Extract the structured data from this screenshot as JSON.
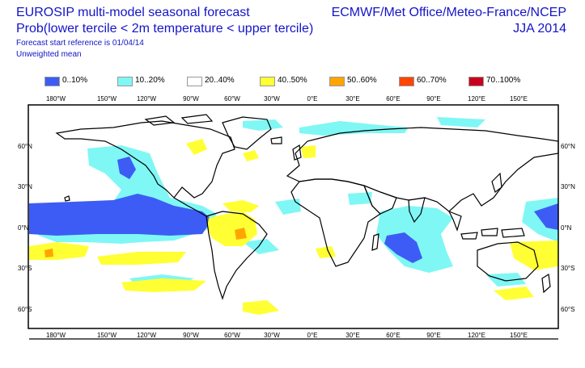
{
  "header": {
    "title_line1": "EUROSIP multi-model seasonal forecast",
    "title_line2": "Prob(lower tercile < 2m temperature < upper tercile)",
    "forecast_ref": "Forecast start reference is 01/04/14",
    "weighting": "Unweighted mean",
    "centres": "ECMWF/Met Office/Meteo-France/NCEP",
    "season": "JJA 2014"
  },
  "legend": [
    {
      "label": "0..10%",
      "color": "#3d5cf5"
    },
    {
      "label": "10..20%",
      "color": "#7ff7f5"
    },
    {
      "label": "20..40%",
      "color": "#ffffff"
    },
    {
      "label": "40..50%",
      "color": "#ffff33"
    },
    {
      "label": "50..60%",
      "color": "#ffa500"
    },
    {
      "label": "60..70%",
      "color": "#ff4500"
    },
    {
      "label": "70..100%",
      "color": "#c8001e"
    }
  ],
  "axes": {
    "lon_labels": [
      "180°W",
      "150°W",
      "120°W",
      "90°W",
      "60°W",
      "30°W",
      "0°E",
      "30°E",
      "60°E",
      "90°E",
      "120°E",
      "150°E"
    ],
    "lat_labels": [
      "60°N",
      "30°N",
      "0°N",
      "30°S",
      "60°S"
    ]
  },
  "colors": {
    "coast": "#000000",
    "frame": "#000000"
  }
}
